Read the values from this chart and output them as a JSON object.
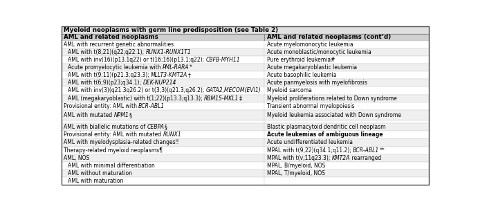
{
  "title": "Myeloid neoplasms with germ line predisposition (see Table 2)",
  "col1_header": "AML and related neoplasms",
  "col2_header": "AML and related neoplasms (cont’d)",
  "rows": [
    {
      "left": [
        [
          "AML with recurrent genetic abnormalities",
          "normal",
          0
        ]
      ],
      "right": [
        [
          "Acute myelomonocytic leukemia",
          "normal"
        ]
      ],
      "indent": 0
    },
    {
      "left": [
        [
          "AML with t(8;21)(q22;q22.1); ",
          "normal",
          1
        ],
        [
          "RUNX1-RUNX1T1",
          "italic",
          1
        ]
      ],
      "right": [
        [
          "Acute monoblastic/monocytic leukemia",
          "normal"
        ]
      ],
      "indent": 1
    },
    {
      "left": [
        [
          "AML with inv(16)(p13.1q22) or t(16;16)(p13.1;q22); ",
          "normal",
          1
        ],
        [
          "CBFB-MYH11",
          "italic",
          1
        ]
      ],
      "right": [
        [
          "Pure erythroid leukemia#",
          "normal"
        ]
      ],
      "indent": 1
    },
    {
      "left": [
        [
          "Acute promyelocytic leukemia with ",
          "normal",
          1
        ],
        [
          "PML-RARA",
          "italic",
          1
        ],
        [
          "*",
          "normal",
          1
        ]
      ],
      "right": [
        [
          "Acute megakaryoblastic leukemia",
          "normal"
        ]
      ],
      "indent": 1
    },
    {
      "left": [
        [
          "AML with t(9;11)(p21.3;q23.3); ",
          "normal",
          1
        ],
        [
          "MLLT3-KMT2A",
          "italic",
          1
        ],
        [
          "†",
          "normal",
          1
        ]
      ],
      "right": [
        [
          "Acute basophilic leukemia",
          "normal"
        ]
      ],
      "indent": 1
    },
    {
      "left": [
        [
          "AML with t(6;9)(p23;q34.1); ",
          "normal",
          1
        ],
        [
          "DEK-NUP214",
          "italic",
          1
        ]
      ],
      "right": [
        [
          "Acute panmyelosis with myelofibrosis",
          "normal"
        ]
      ],
      "indent": 1
    },
    {
      "left": [
        [
          "AML with inv(3)(q21.3q26.2) or t(3;3)(q21.3;q26.2); ",
          "normal",
          1
        ],
        [
          "GATA2,MECOM(EVI1)",
          "italic",
          1
        ]
      ],
      "right": [
        [
          "Myeloid sarcoma",
          "normal"
        ]
      ],
      "indent": 1
    },
    {
      "left": [
        [
          "AML (megakaryoblastic) with t(1;22)(p13.3;q13.3); ",
          "normal",
          1
        ],
        [
          "RBM15-MKL1",
          "italic",
          1
        ],
        [
          "‡",
          "normal",
          1
        ]
      ],
      "right": [
        [
          "Myeloid proliferations related to Down syndrome",
          "normal"
        ]
      ],
      "indent": 1
    },
    {
      "left": [
        [
          "Provisional entity: AML with ",
          "normal",
          0
        ],
        [
          "BCR-ABL1",
          "italic",
          0
        ]
      ],
      "right": [
        [
          "Transient abnormal myelopoiesis",
          "normal"
        ]
      ],
      "indent": 0
    },
    {
      "left": [
        [
          "AML with mutated ",
          "normal",
          0
        ],
        [
          "NPM1",
          "italic",
          0
        ],
        [
          "§",
          "normal",
          0
        ]
      ],
      "right": [
        [
          "Myeloid leukemia associated with Down syndrome",
          "normal"
        ]
      ],
      "indent": 0,
      "extra_height": true
    },
    {
      "left": [
        [
          "",
          "normal",
          0
        ]
      ],
      "right": [
        [
          "",
          "normal"
        ]
      ],
      "indent": 0,
      "spacer": true
    },
    {
      "left": [
        [
          "AML with biallelic mutations of ",
          "normal",
          0
        ],
        [
          "CEBPA",
          "italic",
          0
        ],
        [
          "§",
          "normal",
          0
        ]
      ],
      "right": [
        [
          "Blastic plasmacytoid dendritic cell neoplasm",
          "normal"
        ]
      ],
      "indent": 0
    },
    {
      "left": [
        [
          "Provisional entity: AML with mutated ",
          "normal",
          0
        ],
        [
          "RUNX1",
          "italic",
          0
        ]
      ],
      "right": [
        [
          "Acute leukemias of ambiguous lineage",
          "bold"
        ]
      ],
      "indent": 0
    },
    {
      "left": [
        [
          "AML with myelodysplasia-related changesǃǃ",
          "normal",
          0
        ]
      ],
      "right": [
        [
          "Acute undifferentiated leukemia",
          "normal"
        ]
      ],
      "indent": 0
    },
    {
      "left": [
        [
          "Therapy-related myeloid neoplasms¶",
          "normal",
          0
        ]
      ],
      "right": [
        [
          "MPAL with t(9;22)(q34.1;q11.2); ",
          "normal"
        ],
        [
          "BCR-ABL1",
          "italic"
        ],
        [
          "**",
          "normal"
        ]
      ],
      "indent": 0
    },
    {
      "left": [
        [
          "AML, NOS",
          "normal",
          0
        ]
      ],
      "right": [
        [
          "MPAL with t(v;11q23.3); ",
          "normal"
        ],
        [
          "KMT2A",
          "italic"
        ],
        [
          " rearranged",
          "normal"
        ]
      ],
      "indent": 0
    },
    {
      "left": [
        [
          "AML with minimal differentiation",
          "normal",
          1
        ]
      ],
      "right": [
        [
          "MPAL, B/myeloid, NOS",
          "normal"
        ]
      ],
      "indent": 1
    },
    {
      "left": [
        [
          "AML without maturation",
          "normal",
          1
        ]
      ],
      "right": [
        [
          "MPAL, T/myeloid, NOS",
          "normal"
        ]
      ],
      "indent": 1
    },
    {
      "left": [
        [
          "AML with maturation",
          "normal",
          1
        ]
      ],
      "right": [
        [
          "",
          "normal"
        ]
      ],
      "indent": 1
    }
  ],
  "col_split": 0.552,
  "bg_white": "#ffffff",
  "bg_light": "#efefef",
  "bg_title": "#e0e0e0",
  "bg_header": "#d0d0d0",
  "font_size": 5.5,
  "header_font_size": 6.3,
  "title_font_size": 6.3
}
